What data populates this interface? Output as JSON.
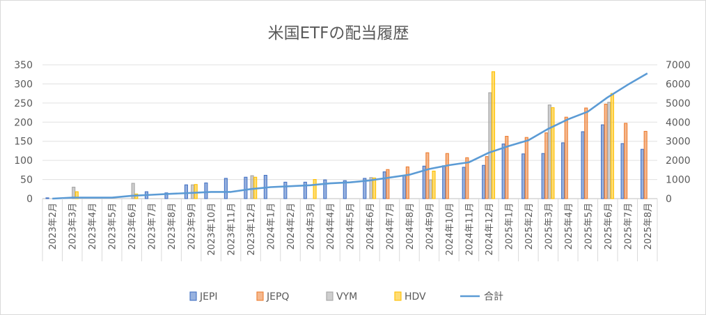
{
  "chart_data": {
    "type": "bar",
    "title": "米国ETFの配当履歴",
    "categories": [
      "2023年2月",
      "2023年3月",
      "2023年4月",
      "2023年5月",
      "2023年6月",
      "2023年7月",
      "2023年8月",
      "2023年9月",
      "2023年10月",
      "2023年11月",
      "2023年12月",
      "2024年1月",
      "2024年2月",
      "2024年3月",
      "2024年4月",
      "2024年5月",
      "2024年6月",
      "2024年7月",
      "2024年8月",
      "2024年9月",
      "2024年10月",
      "2024年11月",
      "2024年12月",
      "2025年1月",
      "2025年2月",
      "2025年3月",
      "2025年4月",
      "2025年5月",
      "2025年6月",
      "2025年7月",
      "2025年8月"
    ],
    "y_left": {
      "min": 0,
      "max": 350,
      "step": 50,
      "ticks": [
        "0",
        "50",
        "100",
        "150",
        "200",
        "250",
        "300",
        "350"
      ]
    },
    "y_right": {
      "min": 0,
      "max": 7000,
      "step": 1000,
      "ticks": [
        "0",
        "1000",
        "2000",
        "3000",
        "4000",
        "5000",
        "6000",
        "7000"
      ]
    },
    "series": [
      {
        "name": "JEPI",
        "type": "bar",
        "axis": "left",
        "color": "#4472C4",
        "values": [
          2,
          0,
          0,
          0,
          0,
          18,
          15,
          36,
          41,
          53,
          56,
          61,
          43,
          43,
          49,
          47,
          53,
          70,
          60,
          85,
          86,
          82,
          87,
          143,
          117,
          118,
          146,
          175,
          193,
          144,
          129
        ]
      },
      {
        "name": "JEPQ",
        "type": "bar",
        "axis": "left",
        "color": "#ED7D31",
        "values": [
          0,
          0,
          0,
          0,
          0,
          0,
          0,
          0,
          0,
          0,
          0,
          0,
          0,
          0,
          0,
          0,
          0,
          76,
          83,
          120,
          118,
          107,
          110,
          163,
          160,
          172,
          213,
          237,
          247,
          197,
          176
        ]
      },
      {
        "name": "VYM",
        "type": "bar",
        "axis": "left",
        "color": "#A5A5A5",
        "values": [
          0,
          30,
          0,
          0,
          40,
          0,
          0,
          36,
          0,
          0,
          60,
          0,
          0,
          0,
          0,
          0,
          55,
          0,
          0,
          49,
          0,
          0,
          277,
          0,
          0,
          245,
          0,
          0,
          252,
          0,
          0
        ]
      },
      {
        "name": "HDV",
        "type": "bar",
        "axis": "left",
        "color": "#FFC000",
        "values": [
          0,
          18,
          0,
          0,
          12,
          0,
          0,
          37,
          0,
          0,
          56,
          0,
          0,
          50,
          0,
          0,
          54,
          0,
          0,
          72,
          0,
          0,
          332,
          0,
          0,
          238,
          0,
          0,
          275,
          0,
          0
        ]
      },
      {
        "name": "合計",
        "type": "line",
        "axis": "right",
        "color": "#5B9BD5",
        "values": [
          0,
          50,
          50,
          50,
          150,
          200,
          250,
          300,
          350,
          350,
          500,
          600,
          650,
          700,
          800,
          850,
          950,
          1100,
          1250,
          1550,
          1750,
          1900,
          2400,
          2750,
          3050,
          3650,
          4150,
          4550,
          5300,
          5950,
          6550
        ]
      }
    ],
    "legend_position": "bottom",
    "grid": "horizontal"
  }
}
